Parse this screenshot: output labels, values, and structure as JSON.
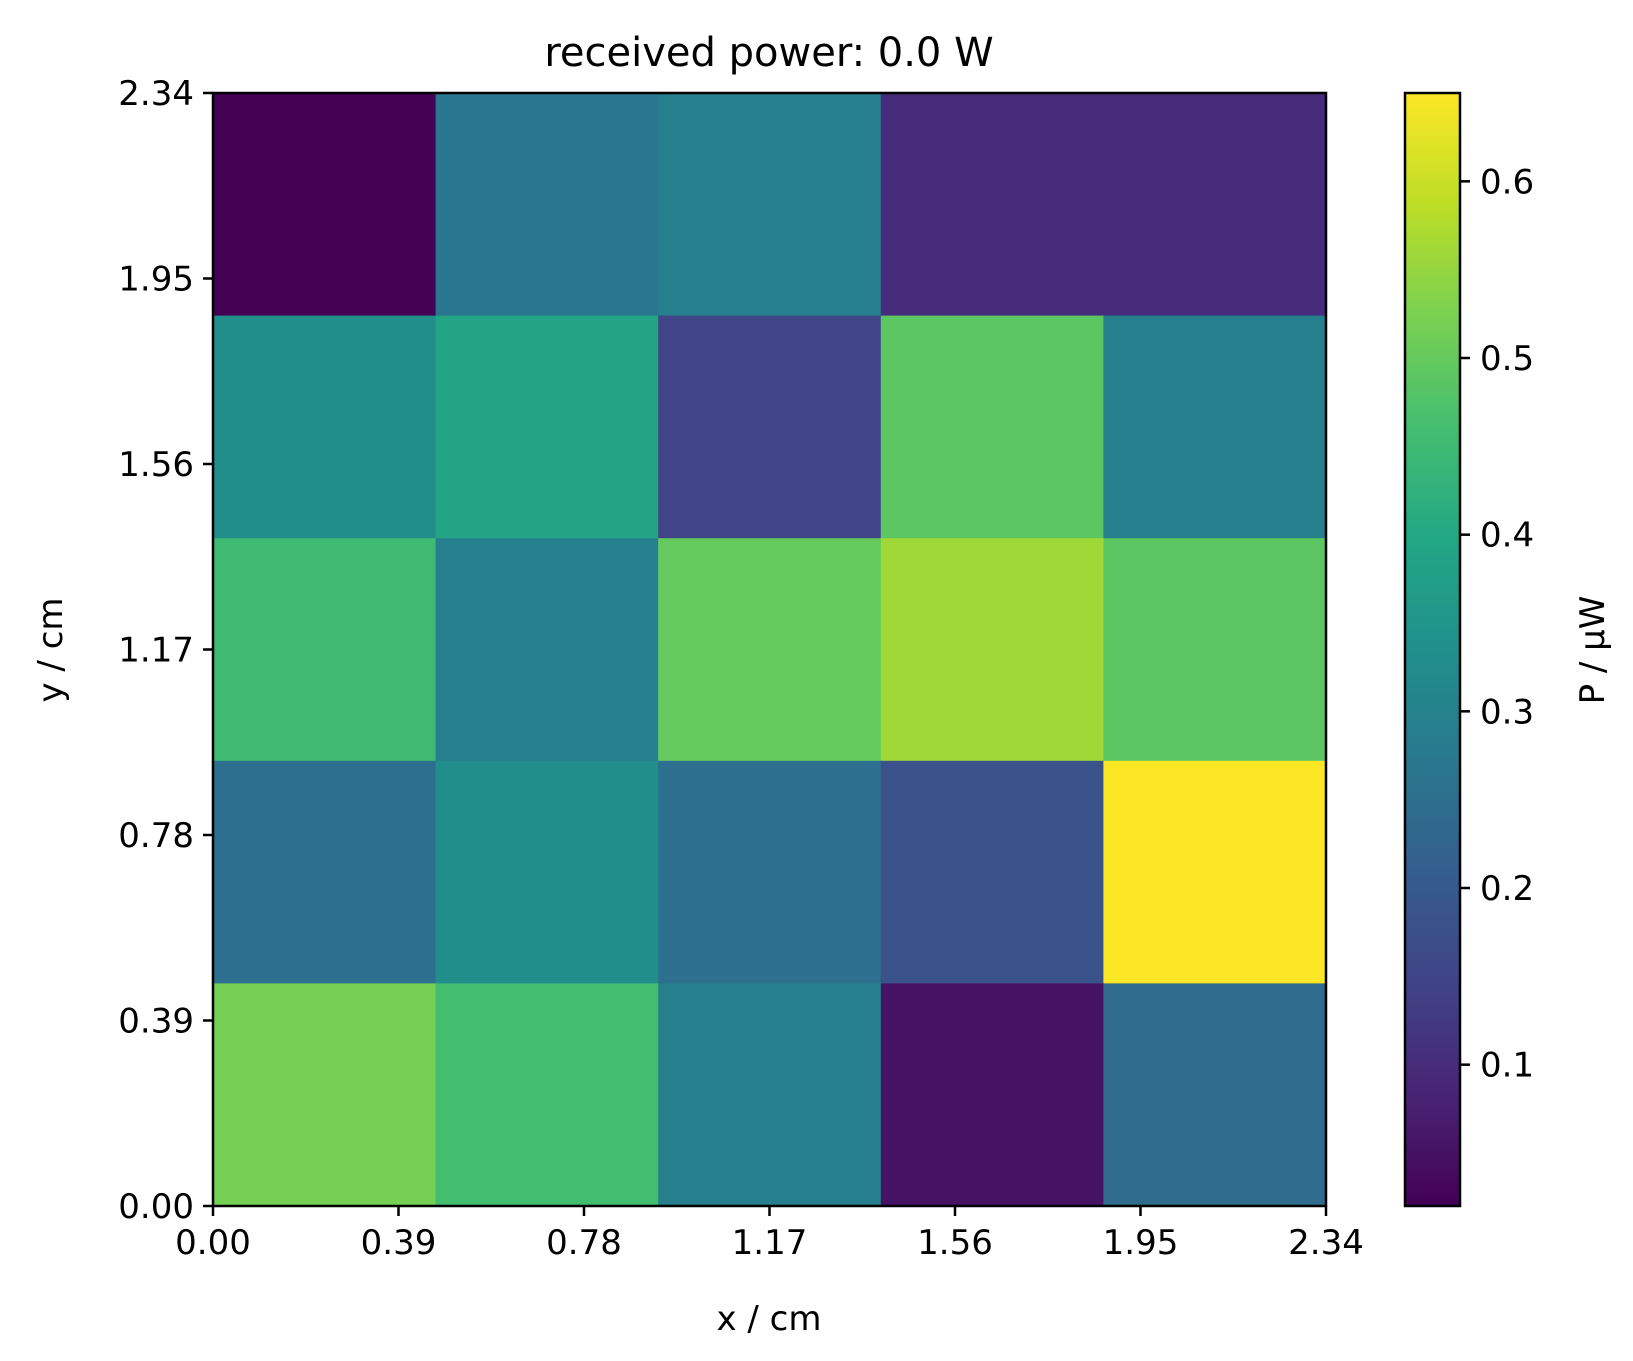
{
  "chart_data": {
    "type": "heatmap",
    "title": "received power: 0.0 W",
    "xlabel": "x / cm",
    "ylabel": "y / cm",
    "xlim": [
      0.0,
      2.34
    ],
    "ylim": [
      0.0,
      2.34
    ],
    "x_ticks": [
      "0.00",
      "0.39",
      "0.78",
      "1.17",
      "1.56",
      "1.95",
      "2.34"
    ],
    "y_ticks": [
      "0.00",
      "0.39",
      "0.78",
      "1.17",
      "1.56",
      "1.95",
      "2.34"
    ],
    "rows": 5,
    "cols": 5,
    "row_order": "top-to-bottom",
    "values": [
      [
        0.02,
        0.27,
        0.29,
        0.1,
        0.1
      ],
      [
        0.33,
        0.39,
        0.15,
        0.49,
        0.29
      ],
      [
        0.45,
        0.29,
        0.5,
        0.56,
        0.49
      ],
      [
        0.25,
        0.33,
        0.25,
        0.18,
        0.65
      ],
      [
        0.52,
        0.46,
        0.29,
        0.05,
        0.24
      ]
    ],
    "colorbar": {
      "label": "P / μW",
      "colormap": "viridis",
      "range": [
        0.02,
        0.65
      ],
      "ticks": [
        "0.1",
        "0.2",
        "0.3",
        "0.4",
        "0.5",
        "0.6"
      ]
    }
  }
}
